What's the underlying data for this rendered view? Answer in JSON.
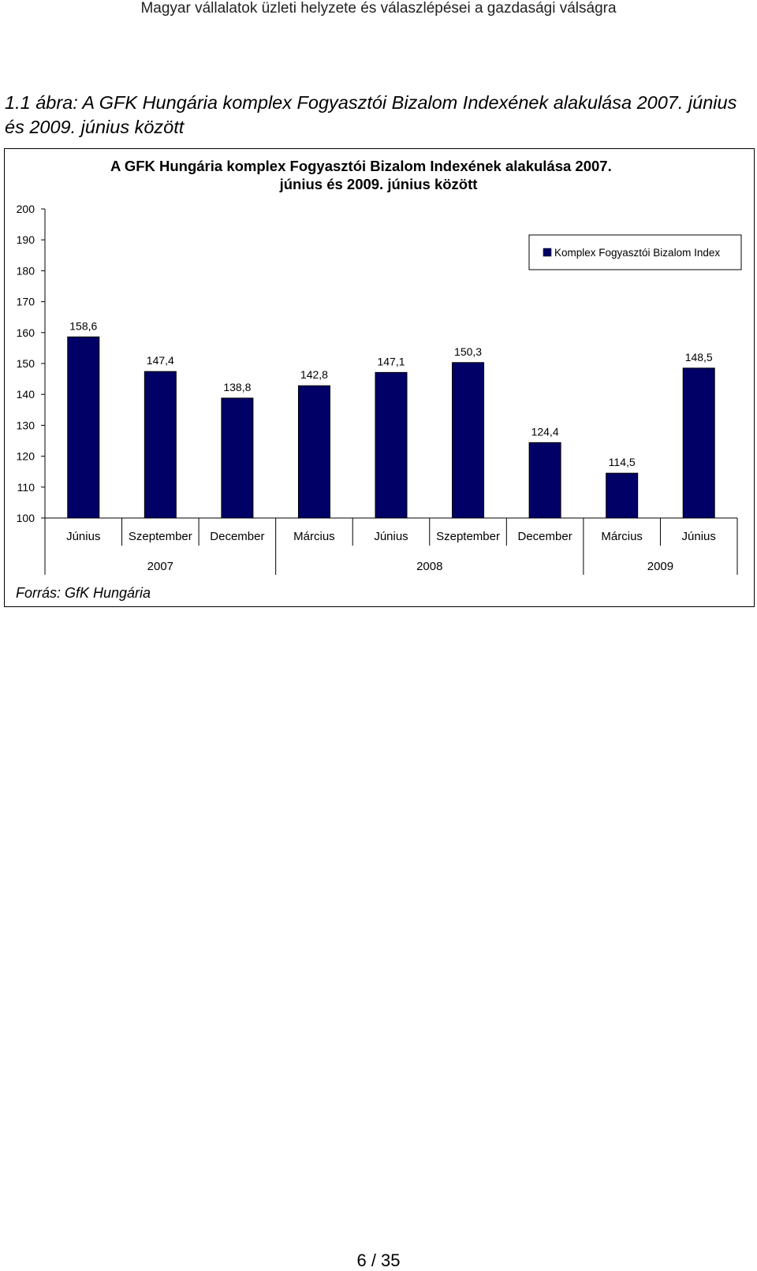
{
  "page": {
    "running_header": "Magyar vállalatok üzleti helyzete és válaszlépései a gazdasági válságra",
    "figure_caption": "1.1 ábra: A GFK Hungária komplex Fogyasztói Bizalom Indexének alakulása 2007. június és 2009. június között",
    "source_note": "Forrás: GfK Hungária",
    "page_number": "6 / 35"
  },
  "chart_data": {
    "type": "bar",
    "title_line1": "A GFK Hungária komplex Fogyasztói Bizalom Indexének alakulása 2007.",
    "title_line2": "június és 2009. június között",
    "categories": [
      "Június",
      "Szeptember",
      "December",
      "Március",
      "Június",
      "Szeptember",
      "December",
      "Március",
      "Június"
    ],
    "year_groups": [
      {
        "label": "2007",
        "count": 3
      },
      {
        "label": "2008",
        "count": 4
      },
      {
        "label": "2009",
        "count": 2
      }
    ],
    "series": [
      {
        "name": "Komplex Fogyasztói Bizalom Index",
        "values": [
          158.6,
          147.4,
          138.8,
          142.8,
          147.1,
          150.3,
          124.4,
          114.5,
          148.5
        ],
        "data_labels": [
          "158,6",
          "147,4",
          "138,8",
          "142,8",
          "147,1",
          "150,3",
          "124,4",
          "114,5",
          "148,5"
        ]
      }
    ],
    "ylim": [
      100,
      200
    ],
    "yticks": [
      100,
      110,
      120,
      130,
      140,
      150,
      160,
      170,
      180,
      190,
      200
    ],
    "grid": false,
    "legend_position": "top-right",
    "colors": {
      "bar": "#000066",
      "bar_edge": "#000000"
    }
  }
}
